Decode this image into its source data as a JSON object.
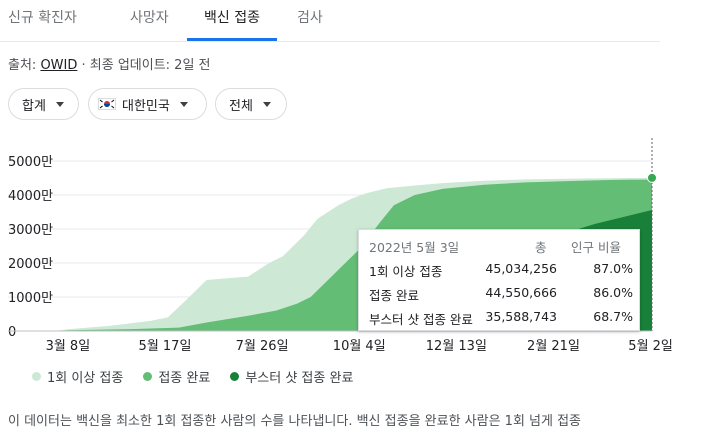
{
  "tabs": [
    {
      "label": "신규 확진자"
    },
    {
      "label": "사망자"
    },
    {
      "label": "백신 접종"
    },
    {
      "label": "검사"
    }
  ],
  "active_tab": 2,
  "source": {
    "prefix": "출처: ",
    "link": "OWID",
    "suffix": " · 최종 업데이트: 2일 전"
  },
  "filters": {
    "metric": "합계",
    "region": "대한민국",
    "scope": "전체"
  },
  "legend": [
    {
      "label": "1회 이상 접종",
      "color": "#cde8d4"
    },
    {
      "label": "접종 완료",
      "color": "#63bd74"
    },
    {
      "label": "부스터 샷 접종 완료",
      "color": "#188038"
    }
  ],
  "tooltip": {
    "date": "2022년 5월 3일",
    "col_total": "총",
    "col_pct": "인구 비율",
    "rows": [
      {
        "label": "1회 이상 접종",
        "total": "45,034,256",
        "pct": "87.0%"
      },
      {
        "label": "접종 완료",
        "total": "44,550,666",
        "pct": "86.0%"
      },
      {
        "label": "부스터 샷 접종 완료",
        "total": "35,588,743",
        "pct": "68.7%"
      }
    ]
  },
  "description": "이 데이터는 백신을 최소한 1회 접종한 사람의 수를 나타냅니다. 백신 접종을 완료한 사람은 1회 넘게 접종",
  "chart_data": {
    "type": "area",
    "y_ticks": [
      "0",
      "1000만",
      "2000만",
      "3000만",
      "4000만",
      "5000만"
    ],
    "ylim": [
      0,
      50000000
    ],
    "x_ticks": [
      "3월 8일",
      "5월 17일",
      "7월 26일",
      "10월 4일",
      "12월 13일",
      "2월 21일",
      "5월 2일"
    ],
    "x_tick_days": [
      0,
      70,
      140,
      210,
      280,
      350,
      420
    ],
    "xlim": [
      -10,
      421
    ],
    "series": [
      {
        "name": "1회 이상 접종",
        "color": "#cde8d4",
        "points": [
          [
            -10,
            0
          ],
          [
            0,
            500000
          ],
          [
            30,
            1500000
          ],
          [
            60,
            3000000
          ],
          [
            72,
            4000000
          ],
          [
            85,
            9000000
          ],
          [
            100,
            15000000
          ],
          [
            115,
            15500000
          ],
          [
            130,
            16000000
          ],
          [
            145,
            20000000
          ],
          [
            155,
            22000000
          ],
          [
            170,
            28000000
          ],
          [
            180,
            33000000
          ],
          [
            195,
            37000000
          ],
          [
            205,
            39000000
          ],
          [
            215,
            40500000
          ],
          [
            230,
            42000000
          ],
          [
            250,
            42800000
          ],
          [
            270,
            43500000
          ],
          [
            300,
            44200000
          ],
          [
            330,
            44600000
          ],
          [
            360,
            44800000
          ],
          [
            390,
            44950000
          ],
          [
            421,
            45034256
          ]
        ]
      },
      {
        "name": "접종 완료",
        "color": "#63bd74",
        "points": [
          [
            -10,
            0
          ],
          [
            0,
            200000
          ],
          [
            40,
            500000
          ],
          [
            80,
            1000000
          ],
          [
            100,
            2500000
          ],
          [
            130,
            4500000
          ],
          [
            150,
            6000000
          ],
          [
            165,
            8000000
          ],
          [
            175,
            10000000
          ],
          [
            185,
            14000000
          ],
          [
            195,
            18000000
          ],
          [
            210,
            24000000
          ],
          [
            225,
            32000000
          ],
          [
            235,
            37000000
          ],
          [
            250,
            40000000
          ],
          [
            270,
            41800000
          ],
          [
            300,
            43000000
          ],
          [
            330,
            43700000
          ],
          [
            360,
            44100000
          ],
          [
            390,
            44400000
          ],
          [
            421,
            44550666
          ]
        ]
      },
      {
        "name": "부스터 샷 접종 완료",
        "color": "#188038",
        "points": [
          [
            -10,
            0
          ],
          [
            230,
            0
          ],
          [
            260,
            1000000
          ],
          [
            280,
            3000000
          ],
          [
            300,
            8000000
          ],
          [
            320,
            15000000
          ],
          [
            340,
            24000000
          ],
          [
            360,
            29000000
          ],
          [
            380,
            31500000
          ],
          [
            400,
            33500000
          ],
          [
            421,
            35588743
          ]
        ]
      }
    ],
    "highlight_day": 421
  }
}
